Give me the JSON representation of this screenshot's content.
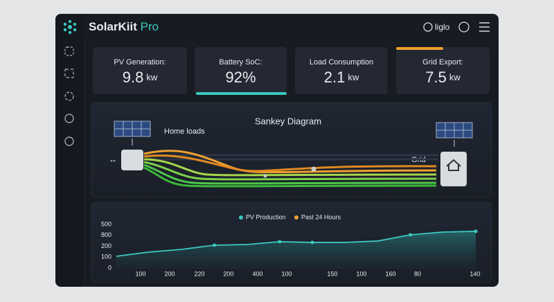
{
  "app": {
    "name": "SolarKiit",
    "name_suffix": "Pro",
    "status": "liglo"
  },
  "cards": [
    {
      "label": "PV Generation:",
      "value": "9.8",
      "unit": "kw"
    },
    {
      "label": "Battery SoC:",
      "value": "92%"
    },
    {
      "label": "Load Consumption",
      "value": "2.1",
      "unit": "kw"
    },
    {
      "label": "Grid Export:",
      "value": "7.5",
      "unit": "kw"
    }
  ],
  "sankey": {
    "title": "Sankey Diagram",
    "home_label": "Home loads",
    "grid_label": "Grid"
  },
  "chart_data": {
    "type": "line",
    "legend": [
      {
        "name": "PV Production",
        "color": "#3cc8c0"
      },
      {
        "name": "Past 24 Hours",
        "color": "#f0a030"
      }
    ],
    "color": "#3cc8c0",
    "values": [
      135,
      183,
      214,
      262,
      270,
      302,
      294,
      294,
      310,
      381,
      413,
      421
    ],
    "ylim": [
      0,
      500
    ],
    "y_axis_labels": [
      "500",
      "800",
      "200",
      "100",
      "0"
    ],
    "x_axis_labels": [
      "100",
      "200",
      "220",
      "200",
      "400",
      "100",
      "150",
      "100",
      "160",
      "80",
      "140"
    ]
  }
}
